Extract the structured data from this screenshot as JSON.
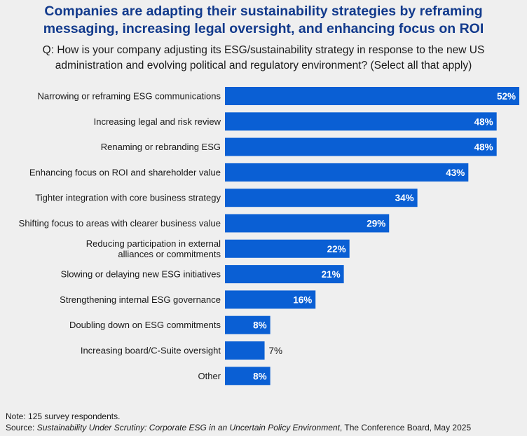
{
  "title_line1": "Companies are adapting their sustainability strategies by reframing",
  "title_line2": "messaging, increasing legal oversight, and enhancing focus on ROI",
  "question_line1": "Q: How is your company adjusting its ESG/sustainability strategy in response to the new US",
  "question_line2": "administration and evolving political and regulatory environment? (Select all that apply)",
  "note": "Note: 125 survey respondents.",
  "source_prefix": "Source: ",
  "source_title": "Sustainability Under Scrutiny: Corporate ESG in an Uncertain Policy Environment",
  "source_suffix": ", The Conference Board, May 2025",
  "colors": {
    "bar": "#0a5fd4",
    "label_inside": "#ffffff",
    "label_outside": "#1a1a1a",
    "title": "#123a8c"
  },
  "chart_data": {
    "type": "bar",
    "orientation": "horizontal",
    "categories": [
      [
        "Narrowing or reframing ESG communications"
      ],
      [
        "Increasing legal and risk review"
      ],
      [
        "Renaming or rebranding ESG"
      ],
      [
        "Enhancing focus on ROI and shareholder value"
      ],
      [
        "Tighter integration with core business strategy"
      ],
      [
        "Shifting focus to areas with clearer business value"
      ],
      [
        "Reducing participation in external",
        "alliances or commitments"
      ],
      [
        "Slowing or delaying new ESG initiatives"
      ],
      [
        "Strengthening internal ESG governance"
      ],
      [
        "Doubling down on ESG commitments"
      ],
      [
        "Increasing board/C-Suite oversight"
      ],
      [
        "Other"
      ]
    ],
    "values": [
      52,
      48,
      48,
      43,
      34,
      29,
      22,
      21,
      16,
      8,
      7,
      8
    ],
    "value_suffix": "%",
    "title": "",
    "xlabel": "",
    "ylabel": "",
    "xlim": [
      0,
      52
    ],
    "grid": false,
    "legend": "none"
  }
}
